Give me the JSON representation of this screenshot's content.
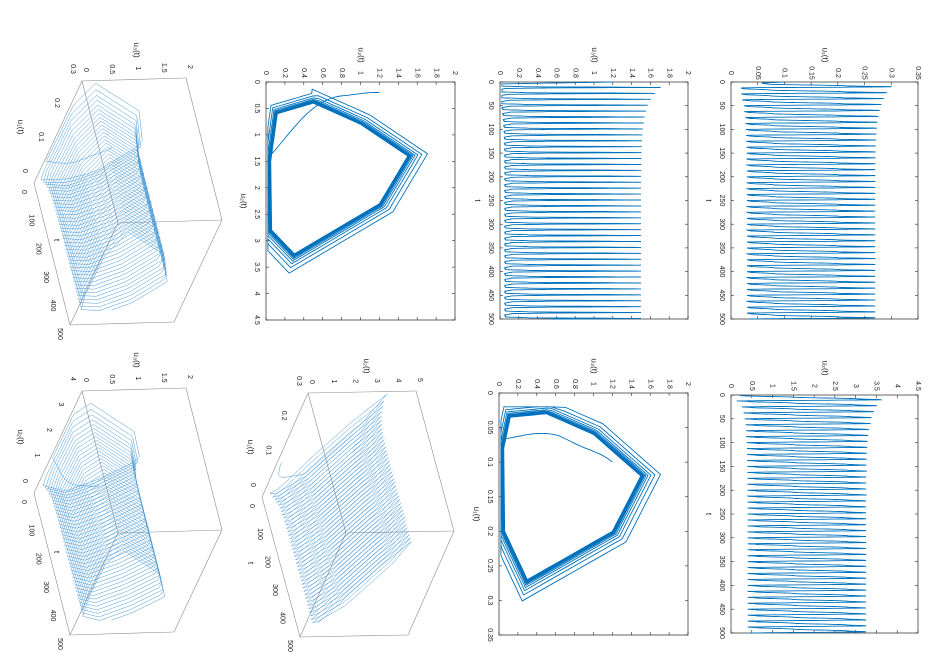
{
  "figure": {
    "orientation": "rotated 90 degrees clockwise",
    "line_color": "#0072BD",
    "line_color_3d": "#4A9AD6",
    "axis_color": "#262626",
    "box3d_color": "#8C8C8C"
  },
  "chart_data": [
    {
      "id": "u1_t",
      "type": "line",
      "xlabel": "t",
      "ylabel": "u₁(t)",
      "xlim": [
        0,
        500
      ],
      "ylim": [
        0,
        0.35
      ],
      "xticks": [
        "0",
        "50",
        "100",
        "150",
        "200",
        "250",
        "300",
        "350",
        "400",
        "450",
        "500"
      ],
      "yticks": [
        "0",
        "0.05",
        "0.1",
        "0.15",
        "0.2",
        "0.25",
        "0.3",
        "0.35"
      ],
      "series": [
        {
          "initial": 0.1,
          "first_peaks": [
            0.28,
            0.3,
            0.29,
            0.29
          ],
          "steady_max": 0.275,
          "min": 0.03,
          "cycles": 40
        }
      ]
    },
    {
      "id": "u3_t",
      "type": "line",
      "xlabel": "t",
      "ylabel": "u₃(t)",
      "xlim": [
        0,
        500
      ],
      "ylim": [
        0,
        2
      ],
      "xticks": [
        "0",
        "50",
        "100",
        "150",
        "200",
        "250",
        "300",
        "350",
        "400",
        "450",
        "500"
      ],
      "yticks": [
        "0",
        "0.2",
        "0.4",
        "0.6",
        "0.8",
        "1",
        "1.2",
        "1.4",
        "1.6",
        "1.8",
        "2"
      ],
      "series": [
        {
          "initial": 1.2,
          "first_peaks": [
            1.9,
            1.7,
            1.65,
            1.63
          ],
          "steady_max": 1.5,
          "min": 0.05,
          "cycles": 40
        }
      ]
    },
    {
      "id": "u2_t",
      "type": "line",
      "xlabel": "t",
      "ylabel": "u₂(t)",
      "xlim": [
        0,
        500
      ],
      "ylim": [
        0,
        4.5
      ],
      "xticks": [
        "0",
        "50",
        "100",
        "150",
        "200",
        "250",
        "300",
        "350",
        "400",
        "450",
        "500"
      ],
      "yticks": [
        "0",
        "0.5",
        "1",
        "1.5",
        "2",
        "2.5",
        "3",
        "3.5",
        "4",
        "4.5"
      ],
      "series": [
        {
          "initial": 0.2,
          "first_peaks": [
            4.3,
            3.6,
            3.5,
            3.45
          ],
          "steady_max": 3.25,
          "min": 0.4,
          "cycles": 40
        }
      ]
    },
    {
      "id": "u2_u3_phase",
      "type": "line",
      "xlabel": "u₂(t)",
      "ylabel": "u₃(t)",
      "xlim": [
        0,
        4.5
      ],
      "ylim": [
        0,
        2
      ],
      "xticks": [
        "0",
        "0.5",
        "1",
        "1.5",
        "2",
        "2.5",
        "3",
        "3.5",
        "4",
        "4.5"
      ],
      "yticks": [
        "0",
        "0.2",
        "0.4",
        "0.6",
        "0.8",
        "1",
        "1.2",
        "1.4",
        "1.6",
        "1.8",
        "2"
      ]
    },
    {
      "id": "u1_u3_phase",
      "type": "line",
      "xlabel": "u₁(t)",
      "ylabel": "u₃(t)",
      "xlim": [
        0,
        0.35
      ],
      "ylim": [
        0,
        2
      ],
      "xticks": [
        "0",
        "0.05",
        "0.1",
        "0.15",
        "0.2",
        "0.25",
        "0.3",
        "0.35"
      ],
      "yticks": [
        "0",
        "0.2",
        "0.4",
        "0.6",
        "0.8",
        "1",
        "1.2",
        "1.4",
        "1.6",
        "1.8",
        "2"
      ]
    },
    {
      "id": "t_u1_u3_3d",
      "type": "line",
      "xlabel": "t",
      "ylabel": "u₁(t)",
      "zlabel": "u₃(t)",
      "xlim": [
        0,
        500
      ],
      "ylim": [
        0,
        0.3
      ],
      "zlim": [
        0,
        2
      ],
      "xticks": [
        "0",
        "100",
        "200",
        "300",
        "400",
        "500"
      ],
      "yticks": [
        "0",
        "0.1",
        "0.2",
        "0.3"
      ],
      "zticks": [
        "0",
        "0.5",
        "1",
        "1.5",
        "2"
      ]
    },
    {
      "id": "t_u1_u2_3d",
      "type": "line",
      "xlabel": "t",
      "ylabel": "u₁(t)",
      "zlabel": "u₂(t)",
      "xlim": [
        0,
        500
      ],
      "ylim": [
        0,
        0.3
      ],
      "zlim": [
        0,
        5
      ],
      "xticks": [
        "0",
        "100",
        "200",
        "300",
        "400",
        "500"
      ],
      "yticks": [
        "0",
        "0.1",
        "0.2",
        "0.3"
      ],
      "zticks": [
        "0",
        "1",
        "2",
        "3",
        "4",
        "5"
      ]
    },
    {
      "id": "t_u2_u3_3d",
      "type": "line",
      "xlabel": "t",
      "ylabel": "u₂(t)",
      "zlabel": "u₃(t)",
      "xlim": [
        0,
        500
      ],
      "ylim": [
        0,
        4
      ],
      "zlim": [
        0,
        2
      ],
      "xticks": [
        "0",
        "100",
        "200",
        "300",
        "400",
        "500"
      ],
      "yticks": [
        "0",
        "1",
        "2",
        "3",
        "4"
      ],
      "zticks": [
        "0",
        "0.5",
        "1",
        "1.5",
        "2"
      ]
    }
  ]
}
